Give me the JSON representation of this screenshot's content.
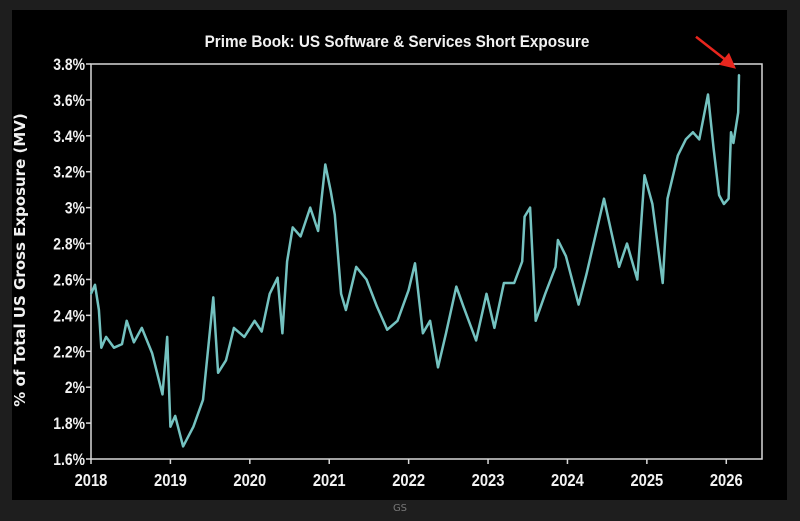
{
  "chart_data": {
    "type": "line",
    "title": "Prime Book: US Software & Services Short Exposure",
    "xlabel": "",
    "ylabel": "% of Total US Gross Exposure (MV)",
    "xlim": [
      2018,
      2026.45
    ],
    "ylim": [
      1.6,
      3.8
    ],
    "x_ticks": [
      "2018",
      "2019",
      "2020",
      "2021",
      "2022",
      "2023",
      "2024",
      "2025",
      "2026"
    ],
    "y_ticks": [
      "1.6%",
      "1.8%",
      "2%",
      "2.2%",
      "2.4%",
      "2.6%",
      "2.8%",
      "3%",
      "3.2%",
      "3.4%",
      "3.6%",
      "3.8%"
    ],
    "grid": false,
    "series_color": "#74c2c0",
    "annotation": {
      "type": "arrow",
      "color": "#e8261e",
      "points_to": [
        2026.16,
        3.74
      ]
    },
    "series": [
      {
        "x": [
          2018.0,
          2018.05,
          2018.1,
          2018.13,
          2018.19,
          2018.29,
          2018.39,
          2018.45,
          2018.54,
          2018.64,
          2018.77,
          2018.9,
          2018.96,
          2019.0,
          2019.06,
          2019.16,
          2019.29,
          2019.41,
          2019.54,
          2019.6,
          2019.7,
          2019.8,
          2019.93,
          2020.06,
          2020.15,
          2020.25,
          2020.35,
          2020.41,
          2020.47,
          2020.54,
          2020.64,
          2020.76,
          2020.86,
          2020.95,
          2021.02,
          2021.07,
          2021.15,
          2021.21,
          2021.34,
          2021.47,
          2021.6,
          2021.73,
          2021.86,
          2022.0,
          2022.08,
          2022.18,
          2022.27,
          2022.37,
          2022.47,
          2022.6,
          2022.69,
          2022.85,
          2022.98,
          2023.08,
          2023.2,
          2023.33,
          2023.43,
          2023.46,
          2023.53,
          2023.6,
          2023.72,
          2023.85,
          2023.88,
          2023.98,
          2024.14,
          2024.24,
          2024.46,
          2024.55,
          2024.65,
          2024.75,
          2024.88,
          2024.97,
          2025.07,
          2025.2,
          2025.26,
          2025.39,
          2025.49,
          2025.58,
          2025.66,
          2025.77,
          2025.84,
          2025.91,
          2025.97,
          2026.03,
          2026.06,
          2026.09,
          2026.15,
          2026.16
        ],
        "y": [
          2.52,
          2.57,
          2.43,
          2.22,
          2.28,
          2.22,
          2.24,
          2.37,
          2.25,
          2.33,
          2.19,
          1.96,
          2.28,
          1.78,
          1.84,
          1.67,
          1.78,
          1.93,
          2.5,
          2.08,
          2.15,
          2.33,
          2.28,
          2.37,
          2.31,
          2.52,
          2.61,
          2.3,
          2.7,
          2.89,
          2.84,
          3.0,
          2.87,
          3.24,
          3.09,
          2.96,
          2.52,
          2.43,
          2.67,
          2.6,
          2.45,
          2.32,
          2.37,
          2.54,
          2.69,
          2.3,
          2.37,
          2.11,
          2.3,
          2.56,
          2.45,
          2.26,
          2.52,
          2.33,
          2.58,
          2.58,
          2.7,
          2.95,
          3.0,
          2.37,
          2.52,
          2.67,
          2.82,
          2.73,
          2.46,
          2.63,
          3.05,
          2.87,
          2.67,
          2.8,
          2.6,
          3.18,
          3.02,
          2.58,
          3.05,
          3.29,
          3.38,
          3.42,
          3.38,
          3.63,
          3.33,
          3.07,
          3.02,
          3.05,
          3.42,
          3.36,
          3.53,
          3.74
        ]
      }
    ]
  },
  "footer": {
    "source": "GS"
  }
}
